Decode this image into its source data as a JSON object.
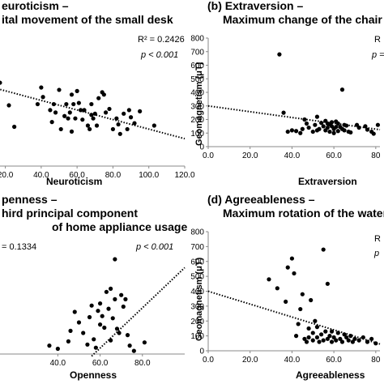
{
  "chart_data": [
    {
      "panel": "a",
      "type": "scatter",
      "title_line1": "euroticism –",
      "title_line2": "ital movement of the small desk",
      "xlabel": "Neuroticism",
      "ylabel": "",
      "xlim": [
        8,
        120
      ],
      "xticks": [
        "20.0",
        "40.0",
        "60.0",
        "80.0",
        "100.0",
        "120.0"
      ],
      "xtick_values": [
        20,
        40,
        60,
        80,
        100,
        120
      ],
      "ylim": [
        0,
        100
      ],
      "r2": "R² = 0.2426",
      "p": "p < 0.001",
      "trend": {
        "x": [
          8,
          120
        ],
        "y": [
          68,
          23
        ]
      },
      "points": [
        [
          13,
          86
        ],
        [
          15,
          77
        ],
        [
          17,
          70
        ],
        [
          22,
          51
        ],
        [
          25,
          33
        ],
        [
          38,
          52
        ],
        [
          40,
          66
        ],
        [
          41,
          58
        ],
        [
          45,
          47
        ],
        [
          46,
          37
        ],
        [
          47,
          52
        ],
        [
          48,
          45
        ],
        [
          50,
          64
        ],
        [
          51,
          31
        ],
        [
          53,
          42
        ],
        [
          54,
          52
        ],
        [
          55,
          40
        ],
        [
          56,
          45
        ],
        [
          57,
          29
        ],
        [
          57,
          60
        ],
        [
          58,
          52
        ],
        [
          59,
          40
        ],
        [
          60,
          63
        ],
        [
          61,
          53
        ],
        [
          62,
          47
        ],
        [
          63,
          39
        ],
        [
          64,
          47
        ],
        [
          66,
          34
        ],
        [
          67,
          31
        ],
        [
          68,
          43
        ],
        [
          68,
          52
        ],
        [
          69,
          40
        ],
        [
          70,
          44
        ],
        [
          71,
          34
        ],
        [
          72,
          57
        ],
        [
          74,
          62
        ],
        [
          75,
          60
        ],
        [
          76,
          45
        ],
        [
          78,
          48
        ],
        [
          80,
          31
        ],
        [
          82,
          40
        ],
        [
          83,
          35
        ],
        [
          84,
          27
        ],
        [
          86,
          44
        ],
        [
          88,
          31
        ],
        [
          89,
          47
        ],
        [
          90,
          41
        ],
        [
          92,
          36
        ],
        [
          95,
          46
        ],
        [
          103,
          34
        ]
      ]
    },
    {
      "panel": "b",
      "type": "scatter",
      "title_line1": "(b) Extraversion –",
      "title_line2": "Maximum change of the chair",
      "xlabel": "Extraversion",
      "ylabel": "Geomagnetism (μT)",
      "xlim": [
        0,
        82
      ],
      "xticks": [
        "0.0",
        "20.0",
        "40.0",
        "60.0",
        "80"
      ],
      "xtick_values": [
        0,
        20,
        40,
        60,
        80
      ],
      "ylim": [
        0,
        800
      ],
      "yticks": [
        "0",
        "100",
        "200",
        "300",
        "400",
        "500",
        "600",
        "700",
        "800"
      ],
      "ytick_values": [
        0,
        100,
        200,
        300,
        400,
        500,
        600,
        700,
        800
      ],
      "r2": "R",
      "p": "p =",
      "trend": {
        "x": [
          0,
          82
        ],
        "y": [
          300,
          125
        ]
      },
      "points": [
        [
          34,
          680
        ],
        [
          36,
          250
        ],
        [
          38,
          110
        ],
        [
          40,
          120
        ],
        [
          42,
          115
        ],
        [
          44,
          100
        ],
        [
          45,
          130
        ],
        [
          46,
          200
        ],
        [
          47,
          170
        ],
        [
          48,
          140
        ],
        [
          50,
          110
        ],
        [
          51,
          160
        ],
        [
          52,
          220
        ],
        [
          52,
          120
        ],
        [
          53,
          130
        ],
        [
          54,
          175
        ],
        [
          55,
          150
        ],
        [
          56,
          190
        ],
        [
          56,
          120
        ],
        [
          57,
          140
        ],
        [
          57,
          170
        ],
        [
          58,
          165
        ],
        [
          58,
          110
        ],
        [
          59,
          180
        ],
        [
          59,
          150
        ],
        [
          60,
          100
        ],
        [
          60,
          130
        ],
        [
          61,
          185
        ],
        [
          61,
          145
        ],
        [
          62,
          170
        ],
        [
          62,
          115
        ],
        [
          63,
          145
        ],
        [
          64,
          420
        ],
        [
          64,
          130
        ],
        [
          65,
          160
        ],
        [
          65,
          120
        ],
        [
          66,
          155
        ],
        [
          67,
          110
        ],
        [
          68,
          105
        ],
        [
          71,
          160
        ],
        [
          72,
          140
        ],
        [
          75,
          150
        ],
        [
          76,
          125
        ],
        [
          78,
          110
        ],
        [
          79,
          95
        ],
        [
          81,
          160
        ]
      ]
    },
    {
      "panel": "c",
      "type": "scatter",
      "title_line1": "penness –",
      "title_line2": "hird principal component",
      "title_line3": "of home appliance usage",
      "xlabel": "Openness",
      "ylabel": "",
      "xlim": [
        5,
        100
      ],
      "xticks": [
        "40.0",
        "60.0",
        "80.0"
      ],
      "xtick_values": [
        40,
        60,
        80
      ],
      "ylim": [
        0,
        100
      ],
      "r2": "= 0.1334",
      "p": "p < 0.001",
      "trend": {
        "x": [
          56,
          100
        ],
        "y": [
          -2,
          82
        ]
      },
      "points": [
        [
          36,
          8
        ],
        [
          40,
          5
        ],
        [
          45,
          12
        ],
        [
          46,
          22
        ],
        [
          48,
          40
        ],
        [
          50,
          30
        ],
        [
          52,
          20
        ],
        [
          54,
          9
        ],
        [
          55,
          35
        ],
        [
          56,
          46
        ],
        [
          57,
          14
        ],
        [
          58,
          6
        ],
        [
          59,
          41
        ],
        [
          60,
          48
        ],
        [
          60,
          28
        ],
        [
          61,
          36
        ],
        [
          62,
          25
        ],
        [
          63,
          59
        ],
        [
          64,
          43
        ],
        [
          65,
          62
        ],
        [
          65,
          13
        ],
        [
          66,
          34
        ],
        [
          67,
          52
        ],
        [
          67,
          90
        ],
        [
          68,
          24
        ],
        [
          69,
          20
        ],
        [
          70,
          56
        ],
        [
          71,
          45
        ],
        [
          72,
          52
        ],
        [
          73,
          18
        ],
        [
          74,
          8
        ],
        [
          76,
          3
        ],
        [
          81,
          11
        ]
      ]
    },
    {
      "panel": "d",
      "type": "scatter",
      "title_line1": "(d) Agreeableness –",
      "title_line2": "Maximum rotation of the water",
      "xlabel": "Agreeableness",
      "ylabel": "Geomagnetism (μT)",
      "xlim": [
        0,
        82
      ],
      "xticks": [
        "0.0",
        "20.0",
        "40.0",
        "60.0",
        "80"
      ],
      "xtick_values": [
        0,
        20,
        40,
        60,
        80
      ],
      "ylim": [
        0,
        800
      ],
      "yticks": [
        "0",
        "100",
        "200",
        "300",
        "400",
        "500",
        "600",
        "700",
        "800"
      ],
      "ytick_values": [
        0,
        100,
        200,
        300,
        400,
        500,
        600,
        700,
        800
      ],
      "r2": "R",
      "p": "p",
      "trend": {
        "x": [
          0,
          82
        ],
        "y": [
          400,
          45
        ]
      },
      "points": [
        [
          29,
          480
        ],
        [
          33,
          420
        ],
        [
          37,
          330
        ],
        [
          38,
          560
        ],
        [
          40,
          620
        ],
        [
          41,
          520
        ],
        [
          42,
          100
        ],
        [
          43,
          180
        ],
        [
          44,
          280
        ],
        [
          45,
          380
        ],
        [
          46,
          80
        ],
        [
          47,
          60
        ],
        [
          48,
          150
        ],
        [
          48,
          90
        ],
        [
          49,
          340
        ],
        [
          50,
          120
        ],
        [
          50,
          70
        ],
        [
          51,
          200
        ],
        [
          52,
          90
        ],
        [
          52,
          160
        ],
        [
          53,
          60
        ],
        [
          54,
          110
        ],
        [
          55,
          680
        ],
        [
          55,
          70
        ],
        [
          56,
          130
        ],
        [
          57,
          80
        ],
        [
          57,
          450
        ],
        [
          58,
          100
        ],
        [
          59,
          60
        ],
        [
          59,
          130
        ],
        [
          60,
          90
        ],
        [
          61,
          70
        ],
        [
          62,
          120
        ],
        [
          63,
          80
        ],
        [
          64,
          60
        ],
        [
          65,
          110
        ],
        [
          66,
          90
        ],
        [
          67,
          70
        ],
        [
          68,
          100
        ],
        [
          69,
          60
        ],
        [
          70,
          80
        ],
        [
          72,
          70
        ],
        [
          74,
          90
        ],
        [
          76,
          60
        ],
        [
          78,
          80
        ],
        [
          80,
          50
        ]
      ]
    }
  ]
}
